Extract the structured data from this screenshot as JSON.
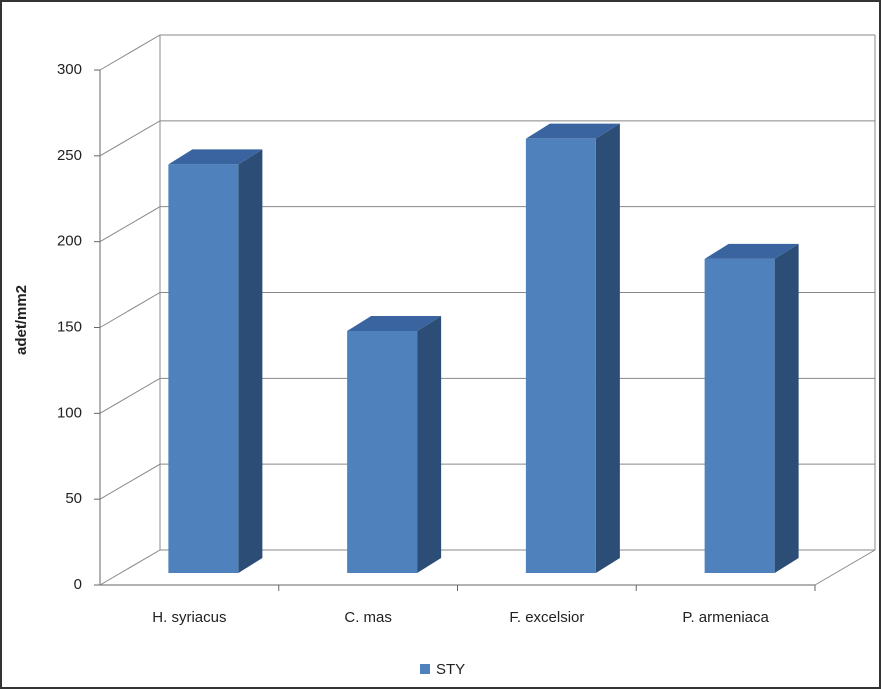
{
  "chart_data": {
    "type": "bar3d",
    "y_label": "adet/mm2",
    "categories": [
      "H. syriacus",
      "C. mas",
      "F.  excelsior",
      "P. armeniaca"
    ],
    "series": [
      {
        "name": "STY",
        "color": "#4f81bd",
        "values": [
          238,
          141,
          253,
          183
        ]
      }
    ],
    "ylim": [
      0,
      300
    ],
    "yticks": [
      0,
      50,
      100,
      150,
      200,
      250,
      300
    ],
    "grid": true,
    "legend": "bottom"
  }
}
